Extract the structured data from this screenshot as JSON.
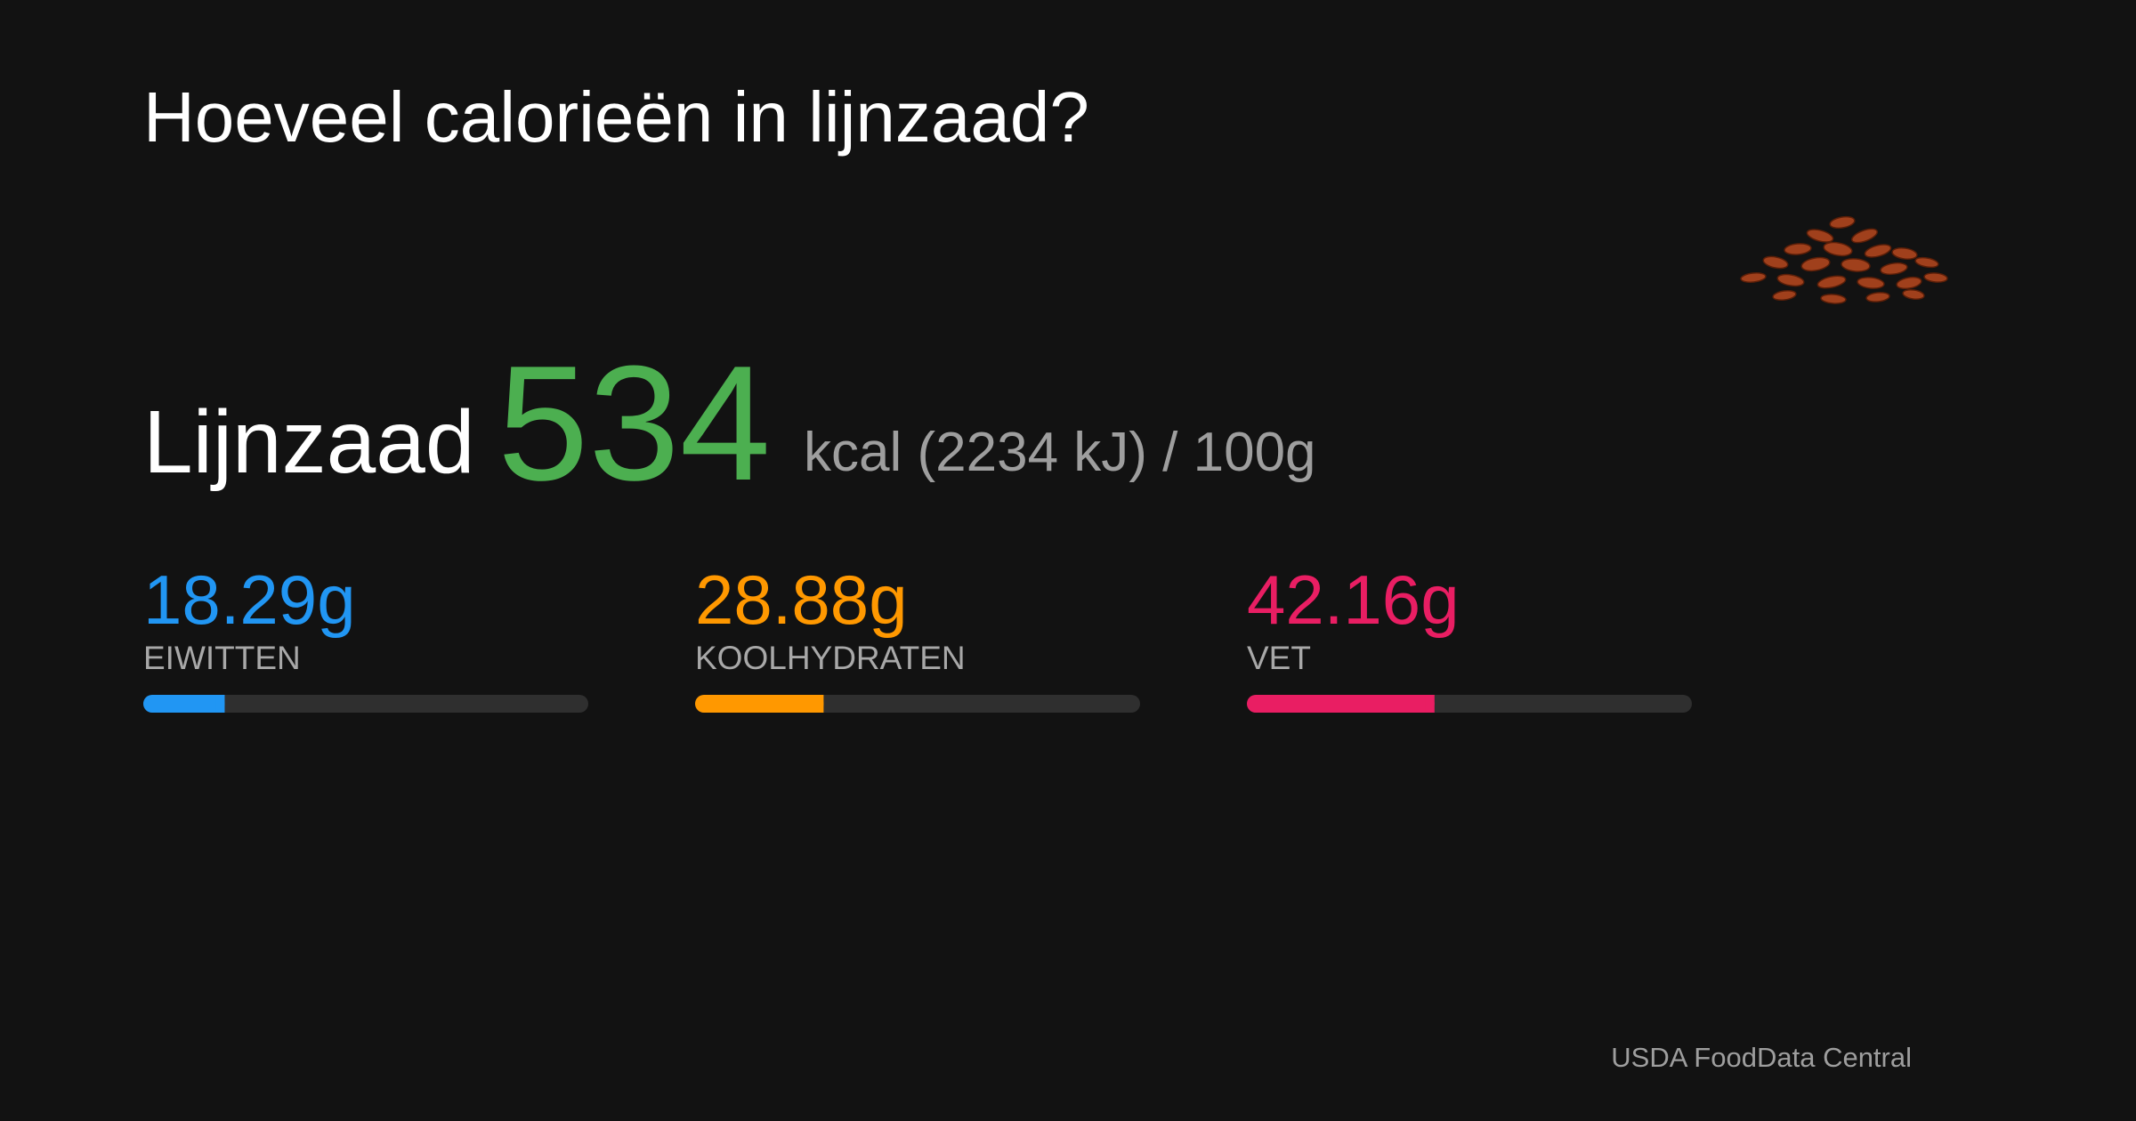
{
  "header": {
    "title": "Hoeveel calorieën in lijnzaad?"
  },
  "summary": {
    "food": "Lijnzaad",
    "calories": 534,
    "unit_text": "kcal (2234 kJ) / 100g",
    "color": "#4caf50"
  },
  "macros": {
    "xlim": [
      0,
      100
    ],
    "items": [
      {
        "value": 18.29,
        "value_label": "18.29g",
        "label": "EIWITTEN",
        "color": "#2196f3"
      },
      {
        "value": 28.88,
        "value_label": "28.88g",
        "label": "KOOLHYDRATEN",
        "color": "#ff9800"
      },
      {
        "value": 42.16,
        "value_label": "42.16g",
        "label": "VET",
        "color": "#e91e63"
      }
    ]
  },
  "footer": {
    "source": "USDA FoodData Central"
  }
}
